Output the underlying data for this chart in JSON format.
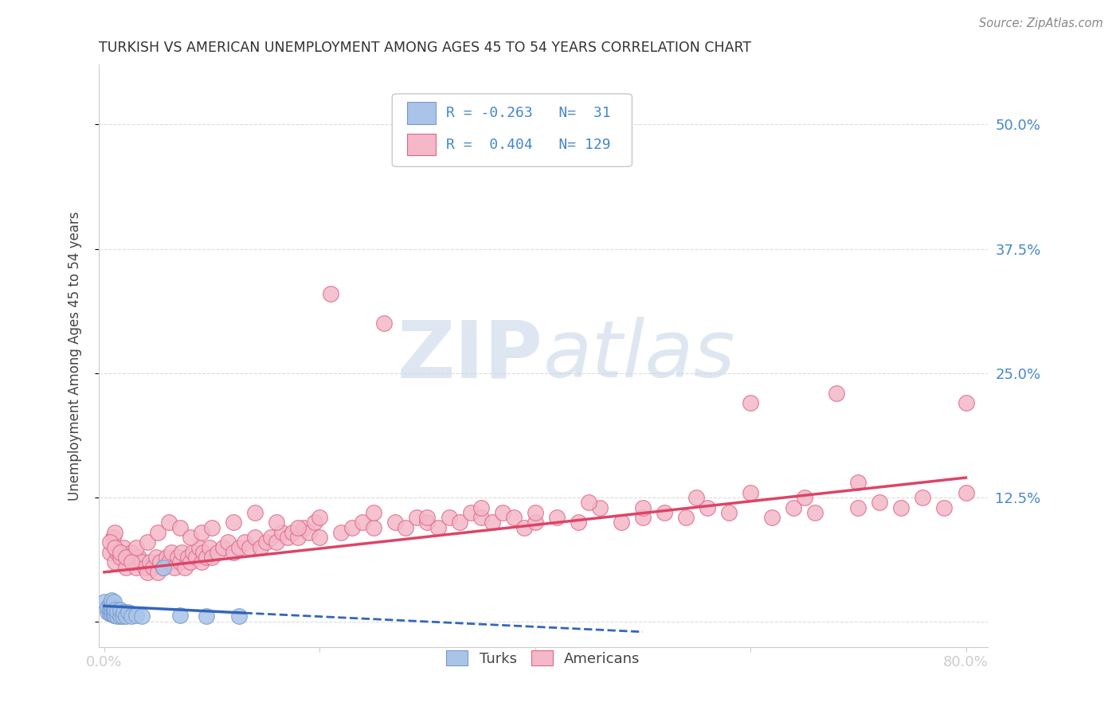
{
  "title": "TURKISH VS AMERICAN UNEMPLOYMENT AMONG AGES 45 TO 54 YEARS CORRELATION CHART",
  "source": "Source: ZipAtlas.com",
  "ylabel": "Unemployment Among Ages 45 to 54 years",
  "background_color": "#ffffff",
  "grid_color": "#cccccc",
  "turks_color": "#aac4e8",
  "turks_edge_color": "#7799cc",
  "americans_color": "#f4b8c8",
  "americans_edge_color": "#dd6688",
  "turks_line_color": "#3366bb",
  "americans_line_color": "#dd4466",
  "title_color": "#333333",
  "axis_label_color": "#444444",
  "tick_color": "#4488cc",
  "watermark_color": "#c8d8e8",
  "source_color": "#888888",
  "xlim": [
    -0.005,
    0.82
  ],
  "ylim": [
    -0.025,
    0.56
  ],
  "yticks": [
    0.0,
    0.125,
    0.25,
    0.375,
    0.5
  ],
  "right_ytick_labels": [
    "12.5%",
    "25.0%",
    "37.5%",
    "50.0%"
  ],
  "xtick_labels": [
    "0.0%",
    "",
    "",
    "",
    "80.0%"
  ],
  "turks_x": [
    0.0,
    0.003,
    0.003,
    0.005,
    0.005,
    0.005,
    0.007,
    0.007,
    0.007,
    0.007,
    0.009,
    0.009,
    0.009,
    0.009,
    0.01,
    0.01,
    0.012,
    0.012,
    0.015,
    0.015,
    0.017,
    0.018,
    0.02,
    0.022,
    0.025,
    0.03,
    0.035,
    0.055,
    0.07,
    0.095,
    0.125
  ],
  "turks_y": [
    0.02,
    0.01,
    0.015,
    0.008,
    0.012,
    0.018,
    0.008,
    0.012,
    0.016,
    0.022,
    0.007,
    0.01,
    0.014,
    0.02,
    0.007,
    0.012,
    0.006,
    0.011,
    0.006,
    0.012,
    0.006,
    0.01,
    0.006,
    0.01,
    0.006,
    0.007,
    0.006,
    0.055,
    0.007,
    0.006,
    0.006
  ],
  "americans_x": [
    0.005,
    0.008,
    0.01,
    0.01,
    0.012,
    0.015,
    0.018,
    0.02,
    0.022,
    0.025,
    0.028,
    0.03,
    0.032,
    0.035,
    0.038,
    0.04,
    0.042,
    0.045,
    0.048,
    0.05,
    0.052,
    0.055,
    0.058,
    0.06,
    0.062,
    0.065,
    0.068,
    0.07,
    0.072,
    0.075,
    0.078,
    0.08,
    0.082,
    0.085,
    0.088,
    0.09,
    0.092,
    0.095,
    0.098,
    0.1,
    0.105,
    0.11,
    0.115,
    0.12,
    0.125,
    0.13,
    0.135,
    0.14,
    0.145,
    0.15,
    0.155,
    0.16,
    0.165,
    0.17,
    0.175,
    0.18,
    0.185,
    0.19,
    0.195,
    0.2,
    0.21,
    0.22,
    0.23,
    0.24,
    0.25,
    0.26,
    0.27,
    0.28,
    0.29,
    0.3,
    0.31,
    0.32,
    0.33,
    0.34,
    0.35,
    0.36,
    0.37,
    0.38,
    0.39,
    0.4,
    0.42,
    0.44,
    0.46,
    0.48,
    0.5,
    0.52,
    0.54,
    0.56,
    0.58,
    0.6,
    0.62,
    0.64,
    0.66,
    0.68,
    0.7,
    0.72,
    0.74,
    0.76,
    0.78,
    0.8,
    0.005,
    0.01,
    0.015,
    0.02,
    0.025,
    0.03,
    0.04,
    0.05,
    0.06,
    0.07,
    0.08,
    0.09,
    0.1,
    0.12,
    0.14,
    0.16,
    0.18,
    0.2,
    0.25,
    0.3,
    0.35,
    0.4,
    0.45,
    0.5,
    0.55,
    0.6,
    0.65,
    0.7,
    0.8
  ],
  "americans_y": [
    0.07,
    0.085,
    0.06,
    0.09,
    0.07,
    0.065,
    0.075,
    0.055,
    0.065,
    0.07,
    0.06,
    0.055,
    0.065,
    0.06,
    0.055,
    0.05,
    0.06,
    0.055,
    0.065,
    0.05,
    0.06,
    0.055,
    0.065,
    0.06,
    0.07,
    0.055,
    0.065,
    0.06,
    0.07,
    0.055,
    0.065,
    0.06,
    0.07,
    0.065,
    0.075,
    0.06,
    0.07,
    0.065,
    0.075,
    0.065,
    0.07,
    0.075,
    0.08,
    0.07,
    0.075,
    0.08,
    0.075,
    0.085,
    0.075,
    0.08,
    0.085,
    0.08,
    0.09,
    0.085,
    0.09,
    0.085,
    0.095,
    0.09,
    0.1,
    0.085,
    0.33,
    0.09,
    0.095,
    0.1,
    0.095,
    0.3,
    0.1,
    0.095,
    0.105,
    0.1,
    0.095,
    0.105,
    0.1,
    0.11,
    0.105,
    0.1,
    0.11,
    0.105,
    0.095,
    0.1,
    0.105,
    0.1,
    0.115,
    0.1,
    0.105,
    0.11,
    0.105,
    0.115,
    0.11,
    0.22,
    0.105,
    0.115,
    0.11,
    0.23,
    0.115,
    0.12,
    0.115,
    0.125,
    0.115,
    0.13,
    0.08,
    0.075,
    0.07,
    0.065,
    0.06,
    0.075,
    0.08,
    0.09,
    0.1,
    0.095,
    0.085,
    0.09,
    0.095,
    0.1,
    0.11,
    0.1,
    0.095,
    0.105,
    0.11,
    0.105,
    0.115,
    0.11,
    0.12,
    0.115,
    0.125,
    0.13,
    0.125,
    0.14,
    0.22
  ]
}
